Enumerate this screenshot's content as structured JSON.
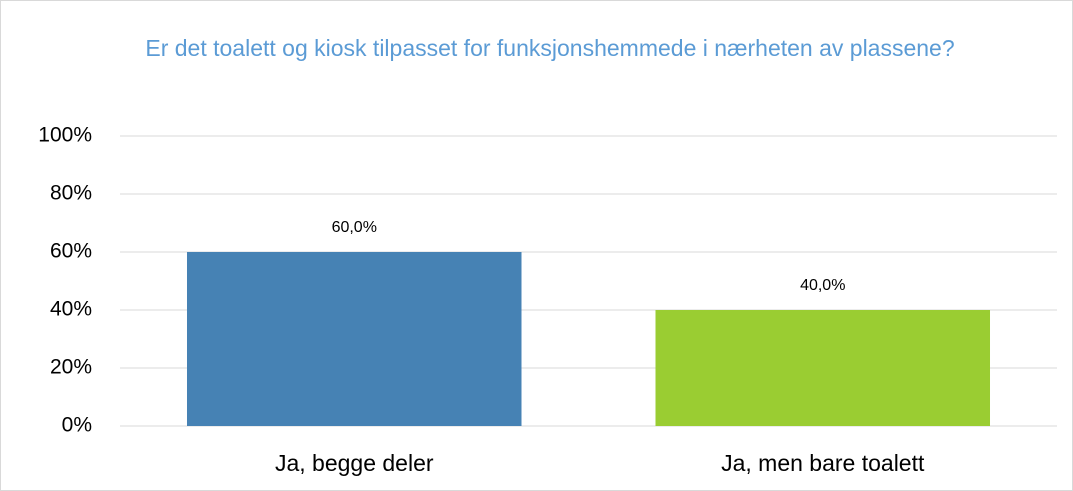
{
  "chart_data": {
    "type": "bar",
    "title": "Er det toalett og kiosk tilpasset for funksjonshemmede i nærheten av plassene?",
    "categories": [
      "Ja, begge deler",
      "Ja, men bare toalett"
    ],
    "values": [
      60,
      40
    ],
    "value_labels": [
      "60,0%",
      "40,0%"
    ],
    "colors": [
      "#4682b4",
      "#9acd32"
    ],
    "ylim": [
      0,
      100
    ],
    "yticks": [
      {
        "value": 0,
        "label": "0%"
      },
      {
        "value": 20,
        "label": "20%"
      },
      {
        "value": 40,
        "label": "40%"
      },
      {
        "value": 60,
        "label": "60%"
      },
      {
        "value": 80,
        "label": "80%"
      },
      {
        "value": 100,
        "label": "100%"
      }
    ],
    "grid": true
  }
}
